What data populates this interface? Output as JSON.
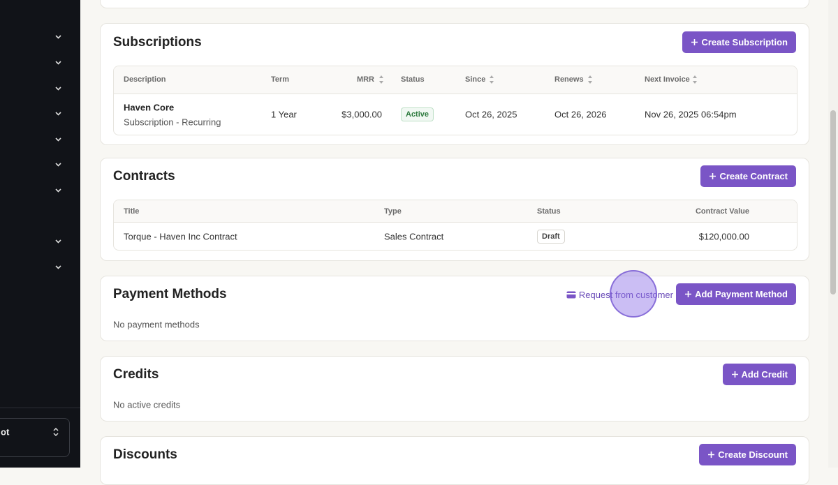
{
  "sidebar": {
    "footer_label": "ot"
  },
  "subscriptions": {
    "title": "Subscriptions",
    "button": "Create Subscription",
    "columns": [
      "Description",
      "Term",
      "MRR",
      "Status",
      "Since",
      "Renews",
      "Next Invoice"
    ],
    "rows": [
      {
        "name": "Haven Core",
        "description": "Subscription - Recurring",
        "term": "1 Year",
        "mrr": "$3,000.00",
        "status": "Active",
        "since": "Oct 26, 2025",
        "renews": "Oct 26, 2026",
        "next_invoice": "Nov 26, 2025 06:54pm"
      }
    ]
  },
  "contracts": {
    "title": "Contracts",
    "button": "Create Contract",
    "columns": [
      "Title",
      "Type",
      "Status",
      "Contract Value"
    ],
    "rows": [
      {
        "title": "Torque - Haven Inc Contract",
        "type": "Sales Contract",
        "status": "Draft",
        "value": "$120,000.00"
      }
    ]
  },
  "payment_methods": {
    "title": "Payment Methods",
    "link": "Request from customer",
    "button": "Add Payment Method",
    "empty": "No payment methods"
  },
  "credits": {
    "title": "Credits",
    "button": "Add Credit",
    "empty": "No active credits"
  },
  "discounts": {
    "title": "Discounts",
    "button": "Create Discount"
  }
}
